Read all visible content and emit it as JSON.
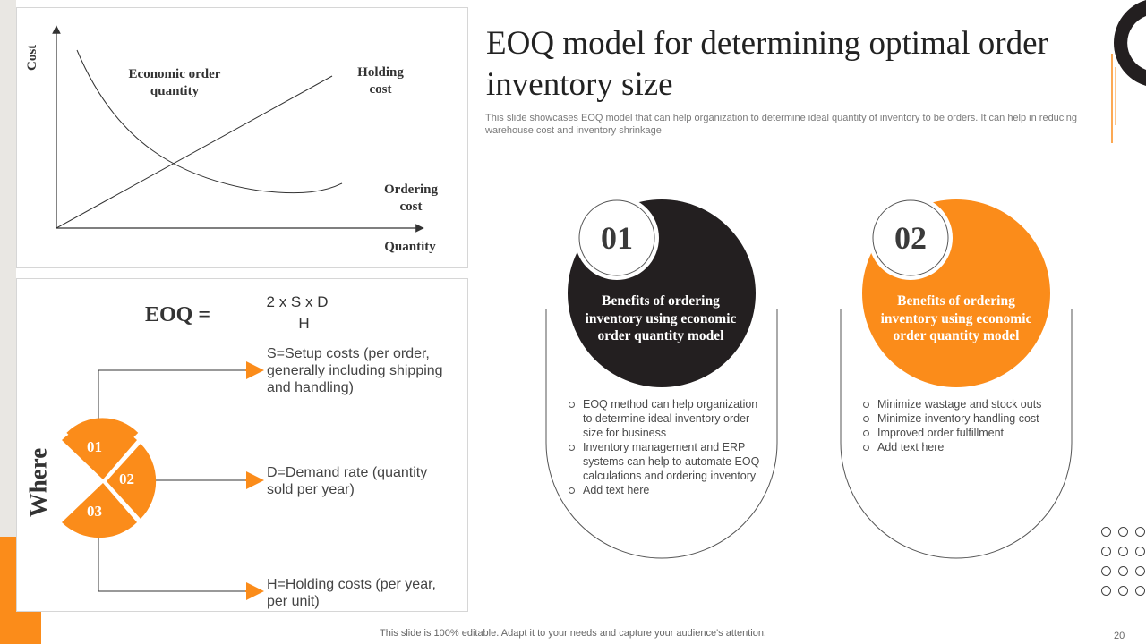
{
  "chart": {
    "y_axis_label": "Cost",
    "x_axis_label": "Quantity",
    "label_eoq": "Economic order quantity",
    "label_holding": "Holding cost",
    "label_ordering": "Ordering cost"
  },
  "formula": {
    "label": "EOQ =",
    "numerator": "2  x S x D",
    "denominator": "H"
  },
  "where": {
    "title": "Where",
    "segments": [
      "01",
      "02",
      "03"
    ],
    "items": [
      "S=Setup costs (per order, generally including shipping and handling)",
      "D=Demand rate (quantity sold per year)",
      "H=Holding costs (per year, per unit)"
    ]
  },
  "header": {
    "title": "EOQ model for determining optimal order inventory size",
    "subtitle": "This slide showcases EOQ model that can help organization to determine ideal quantity of inventory to be orders. It can help in reducing warehouse cost and inventory shrinkage"
  },
  "cards": [
    {
      "number": "01",
      "heading": "Benefits of ordering inventory using economic order quantity model",
      "bullets": [
        "EOQ method can help organization to determine ideal inventory order size for business",
        "Inventory management and ERP systems can help to automate EOQ calculations and ordering inventory",
        "Add text here"
      ]
    },
    {
      "number": "02",
      "heading": "Benefits of ordering inventory using economic order quantity model",
      "bullets": [
        "Minimize wastage and stock outs",
        "Minimize inventory  handling cost",
        "Improved  order fulfillment",
        "Add text here"
      ]
    }
  ],
  "footer": {
    "text": "This slide is 100% editable. Adapt it to your needs and capture your audience's attention.",
    "page": "20"
  },
  "colors": {
    "accent": "#fb8c1a",
    "dark": "#231f20"
  }
}
